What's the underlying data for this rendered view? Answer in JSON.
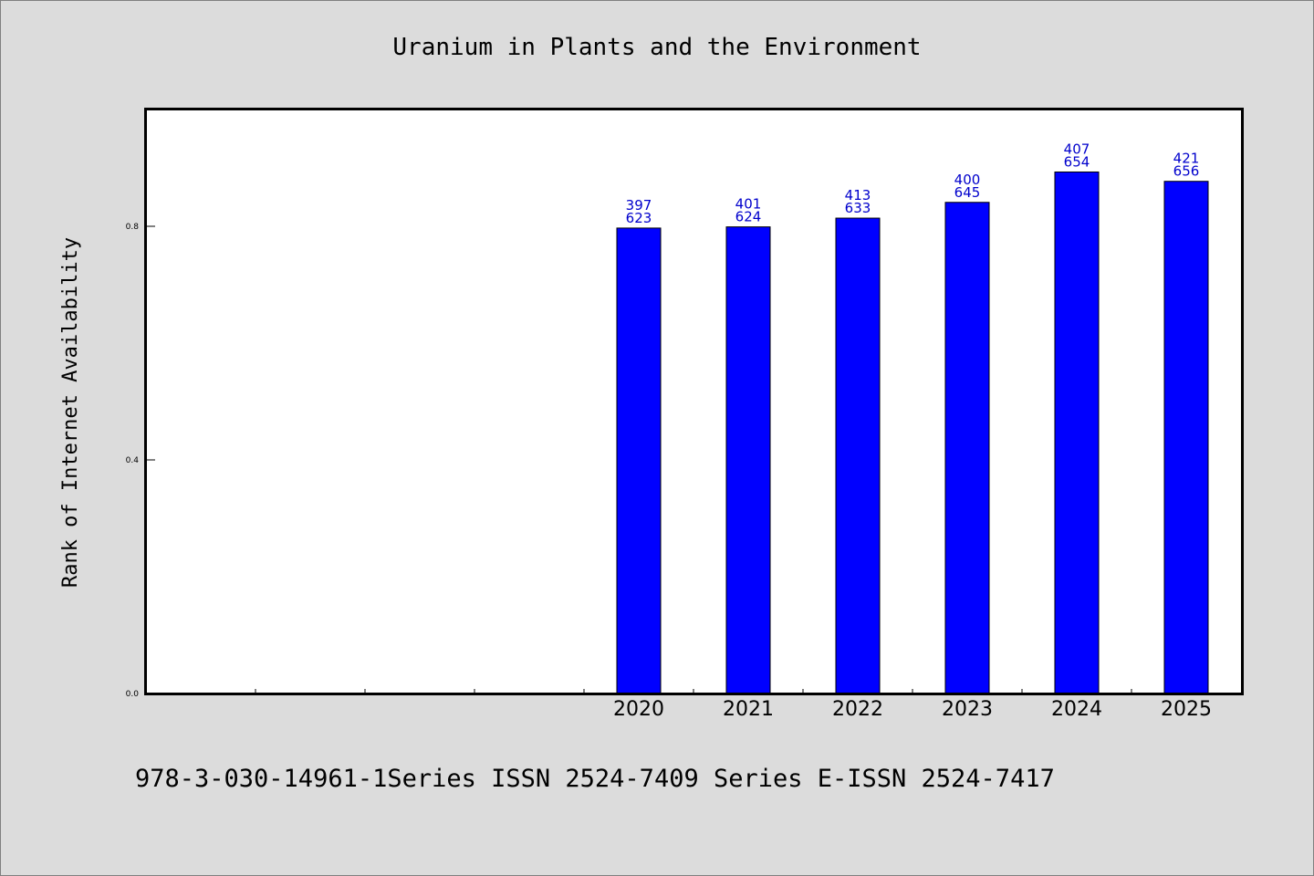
{
  "chart_data": {
    "type": "bar",
    "title": "Uranium in Plants and the Environment",
    "xlabel": "",
    "ylabel": "Rank of Internet Availability",
    "categories": [
      "2020",
      "2021",
      "2022",
      "2023",
      "2024",
      "2025"
    ],
    "values": [
      0.797,
      0.799,
      0.814,
      0.841,
      0.893,
      0.877
    ],
    "data_labels": [
      [
        "397",
        "623"
      ],
      [
        "401",
        "624"
      ],
      [
        "413",
        "633"
      ],
      [
        "400",
        "645"
      ],
      [
        "407",
        "654"
      ],
      [
        "421",
        "656"
      ]
    ],
    "ylim": [
      0,
      1.0
    ],
    "yticks": [
      {
        "value": 0.0,
        "label": "0.0"
      },
      {
        "value": 0.4,
        "label": "0.4"
      },
      {
        "value": 0.8,
        "label": "0.8"
      }
    ],
    "x_slots": 10,
    "first_category_slot": 4,
    "bar_color": "#0000ff",
    "label_color": "#0000cc",
    "grid": false,
    "legend": "none"
  },
  "footer": {
    "text": "978-3-030-14961-1Series ISSN 2524-7409 Series E-ISSN 2524-7417"
  },
  "colors": {
    "background": "#dcdcdc",
    "plot_background": "#ffffff"
  }
}
